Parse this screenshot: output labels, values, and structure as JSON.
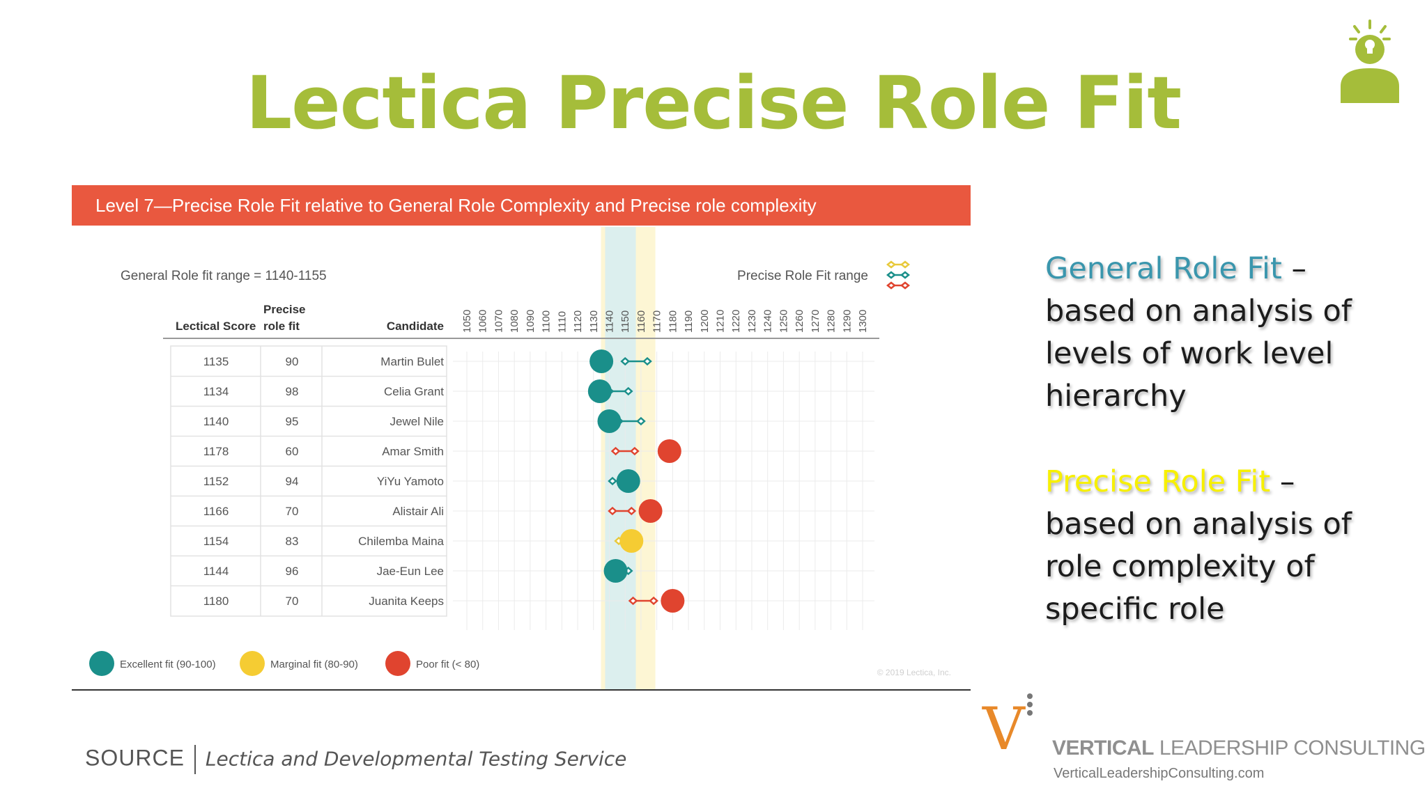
{
  "slide": {
    "title": "Lectica Precise Role Fit",
    "source_label": "SOURCE",
    "source_text": "Lectica and Developmental Testing Service"
  },
  "sidebar": {
    "general": {
      "term": "General Role Fit",
      "dash": " –",
      "lines": [
        "based on analysis of",
        "levels of work level",
        "hierarchy"
      ]
    },
    "precise": {
      "term": "Precise Role Fit",
      "dash": " –",
      "lines": [
        "based on analysis of",
        "role complexity of",
        "specific role"
      ]
    }
  },
  "branding": {
    "company_bold": "VERTICAL",
    "company_rest": " LEADERSHIP CONSULTING",
    "url": "VerticalLeadershipConsulting.com",
    "logo_letter": "V"
  },
  "chart_data": {
    "type": "scatter",
    "title": "Level 7—Precise Role Fit relative to General Role Complexity and Precise role complexity",
    "general_range_text": "General Role fit range = 1140-1155",
    "general_range": [
      1140,
      1155
    ],
    "precise_range_legend": "Precise Role Fit range",
    "copyright": "© 2019 Lectica, Inc.",
    "columns": {
      "score": "Lectical Score",
      "fit_top": "Precise",
      "fit_bottom": "role fit",
      "candidate": "Candidate"
    },
    "x_ticks": [
      1050,
      1060,
      1070,
      1080,
      1090,
      1100,
      1110,
      1120,
      1130,
      1140,
      1150,
      1160,
      1170,
      1180,
      1190,
      1200,
      1210,
      1220,
      1230,
      1240,
      1250,
      1260,
      1270,
      1280,
      1290,
      1300
    ],
    "xlim": [
      1050,
      1300
    ],
    "rows": [
      {
        "score": 1135,
        "fit": 90,
        "name": "Martin Bulet",
        "category": "excellent",
        "range": [
          1150,
          1164
        ]
      },
      {
        "score": 1134,
        "fit": 98,
        "name": "Celia Grant",
        "category": "excellent",
        "range": [
          1140,
          1152
        ]
      },
      {
        "score": 1140,
        "fit": 95,
        "name": "Jewel Nile",
        "category": "excellent",
        "range": [
          1146,
          1160
        ]
      },
      {
        "score": 1178,
        "fit": 60,
        "name": "Amar Smith",
        "category": "poor",
        "range": [
          1144,
          1156
        ]
      },
      {
        "score": 1152,
        "fit": 94,
        "name": "YiYu Yamoto",
        "category": "excellent",
        "range": [
          1142,
          1152
        ]
      },
      {
        "score": 1166,
        "fit": 70,
        "name": "Alistair Ali",
        "category": "poor",
        "range": [
          1142,
          1154
        ]
      },
      {
        "score": 1154,
        "fit": 83,
        "name": "Chilemba Maina",
        "category": "marginal",
        "range": [
          1146,
          1156
        ]
      },
      {
        "score": 1144,
        "fit": 96,
        "name": "Jae-Eun Lee",
        "category": "excellent",
        "range": [
          1144,
          1152
        ]
      },
      {
        "score": 1180,
        "fit": 70,
        "name": "Juanita Keeps",
        "category": "poor",
        "range": [
          1155,
          1168
        ]
      }
    ],
    "legend": [
      {
        "key": "excellent",
        "label": "Excellent  fit (90-100)",
        "color": "#1a8f8a"
      },
      {
        "key": "marginal",
        "label": "Marginal fit (80-90)",
        "color": "#f5cc33"
      },
      {
        "key": "poor",
        "label": "Poor fit (< 80)",
        "color": "#e0442f"
      }
    ]
  }
}
